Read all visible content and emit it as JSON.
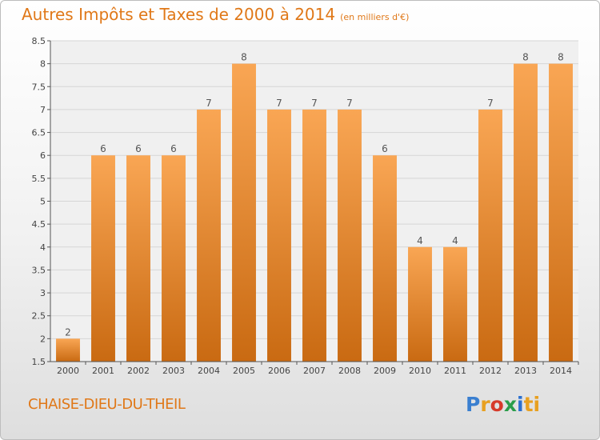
{
  "header": {
    "title": "Autres Impôts et Taxes de 2000 à 2014",
    "unit": "(en milliers d'€)"
  },
  "footer": {
    "commune": "CHAISE-DIEU-DU-THEIL",
    "brand": [
      "P",
      "r",
      "o",
      "x",
      "i",
      "ti"
    ]
  },
  "colors": {
    "bar_light": "#f9a654",
    "bar_dark": "#c96a12",
    "title": "#e07818",
    "grid": "#d6d6d6",
    "plot_bg": "#f0f0f0"
  },
  "chart_data": {
    "type": "bar",
    "categories": [
      "2000",
      "2001",
      "2002",
      "2003",
      "2004",
      "2005",
      "2006",
      "2007",
      "2008",
      "2009",
      "2010",
      "2011",
      "2012",
      "2013",
      "2014"
    ],
    "values": [
      2,
      6,
      6,
      6,
      7,
      8,
      7,
      7,
      7,
      6,
      4,
      4,
      7,
      8,
      8
    ],
    "data_labels": [
      "2",
      "6",
      "6",
      "6",
      "7",
      "8",
      "7",
      "7",
      "7",
      "6",
      "4",
      "4",
      "7",
      "8",
      "8"
    ],
    "yticks": [
      "1.5",
      "2",
      "2.5",
      "3",
      "3.5",
      "4",
      "4.5",
      "5",
      "5.5",
      "6",
      "6.5",
      "7",
      "7.5",
      "8",
      "8.5"
    ],
    "ylim": [
      1.5,
      8.5
    ],
    "grid": true
  }
}
